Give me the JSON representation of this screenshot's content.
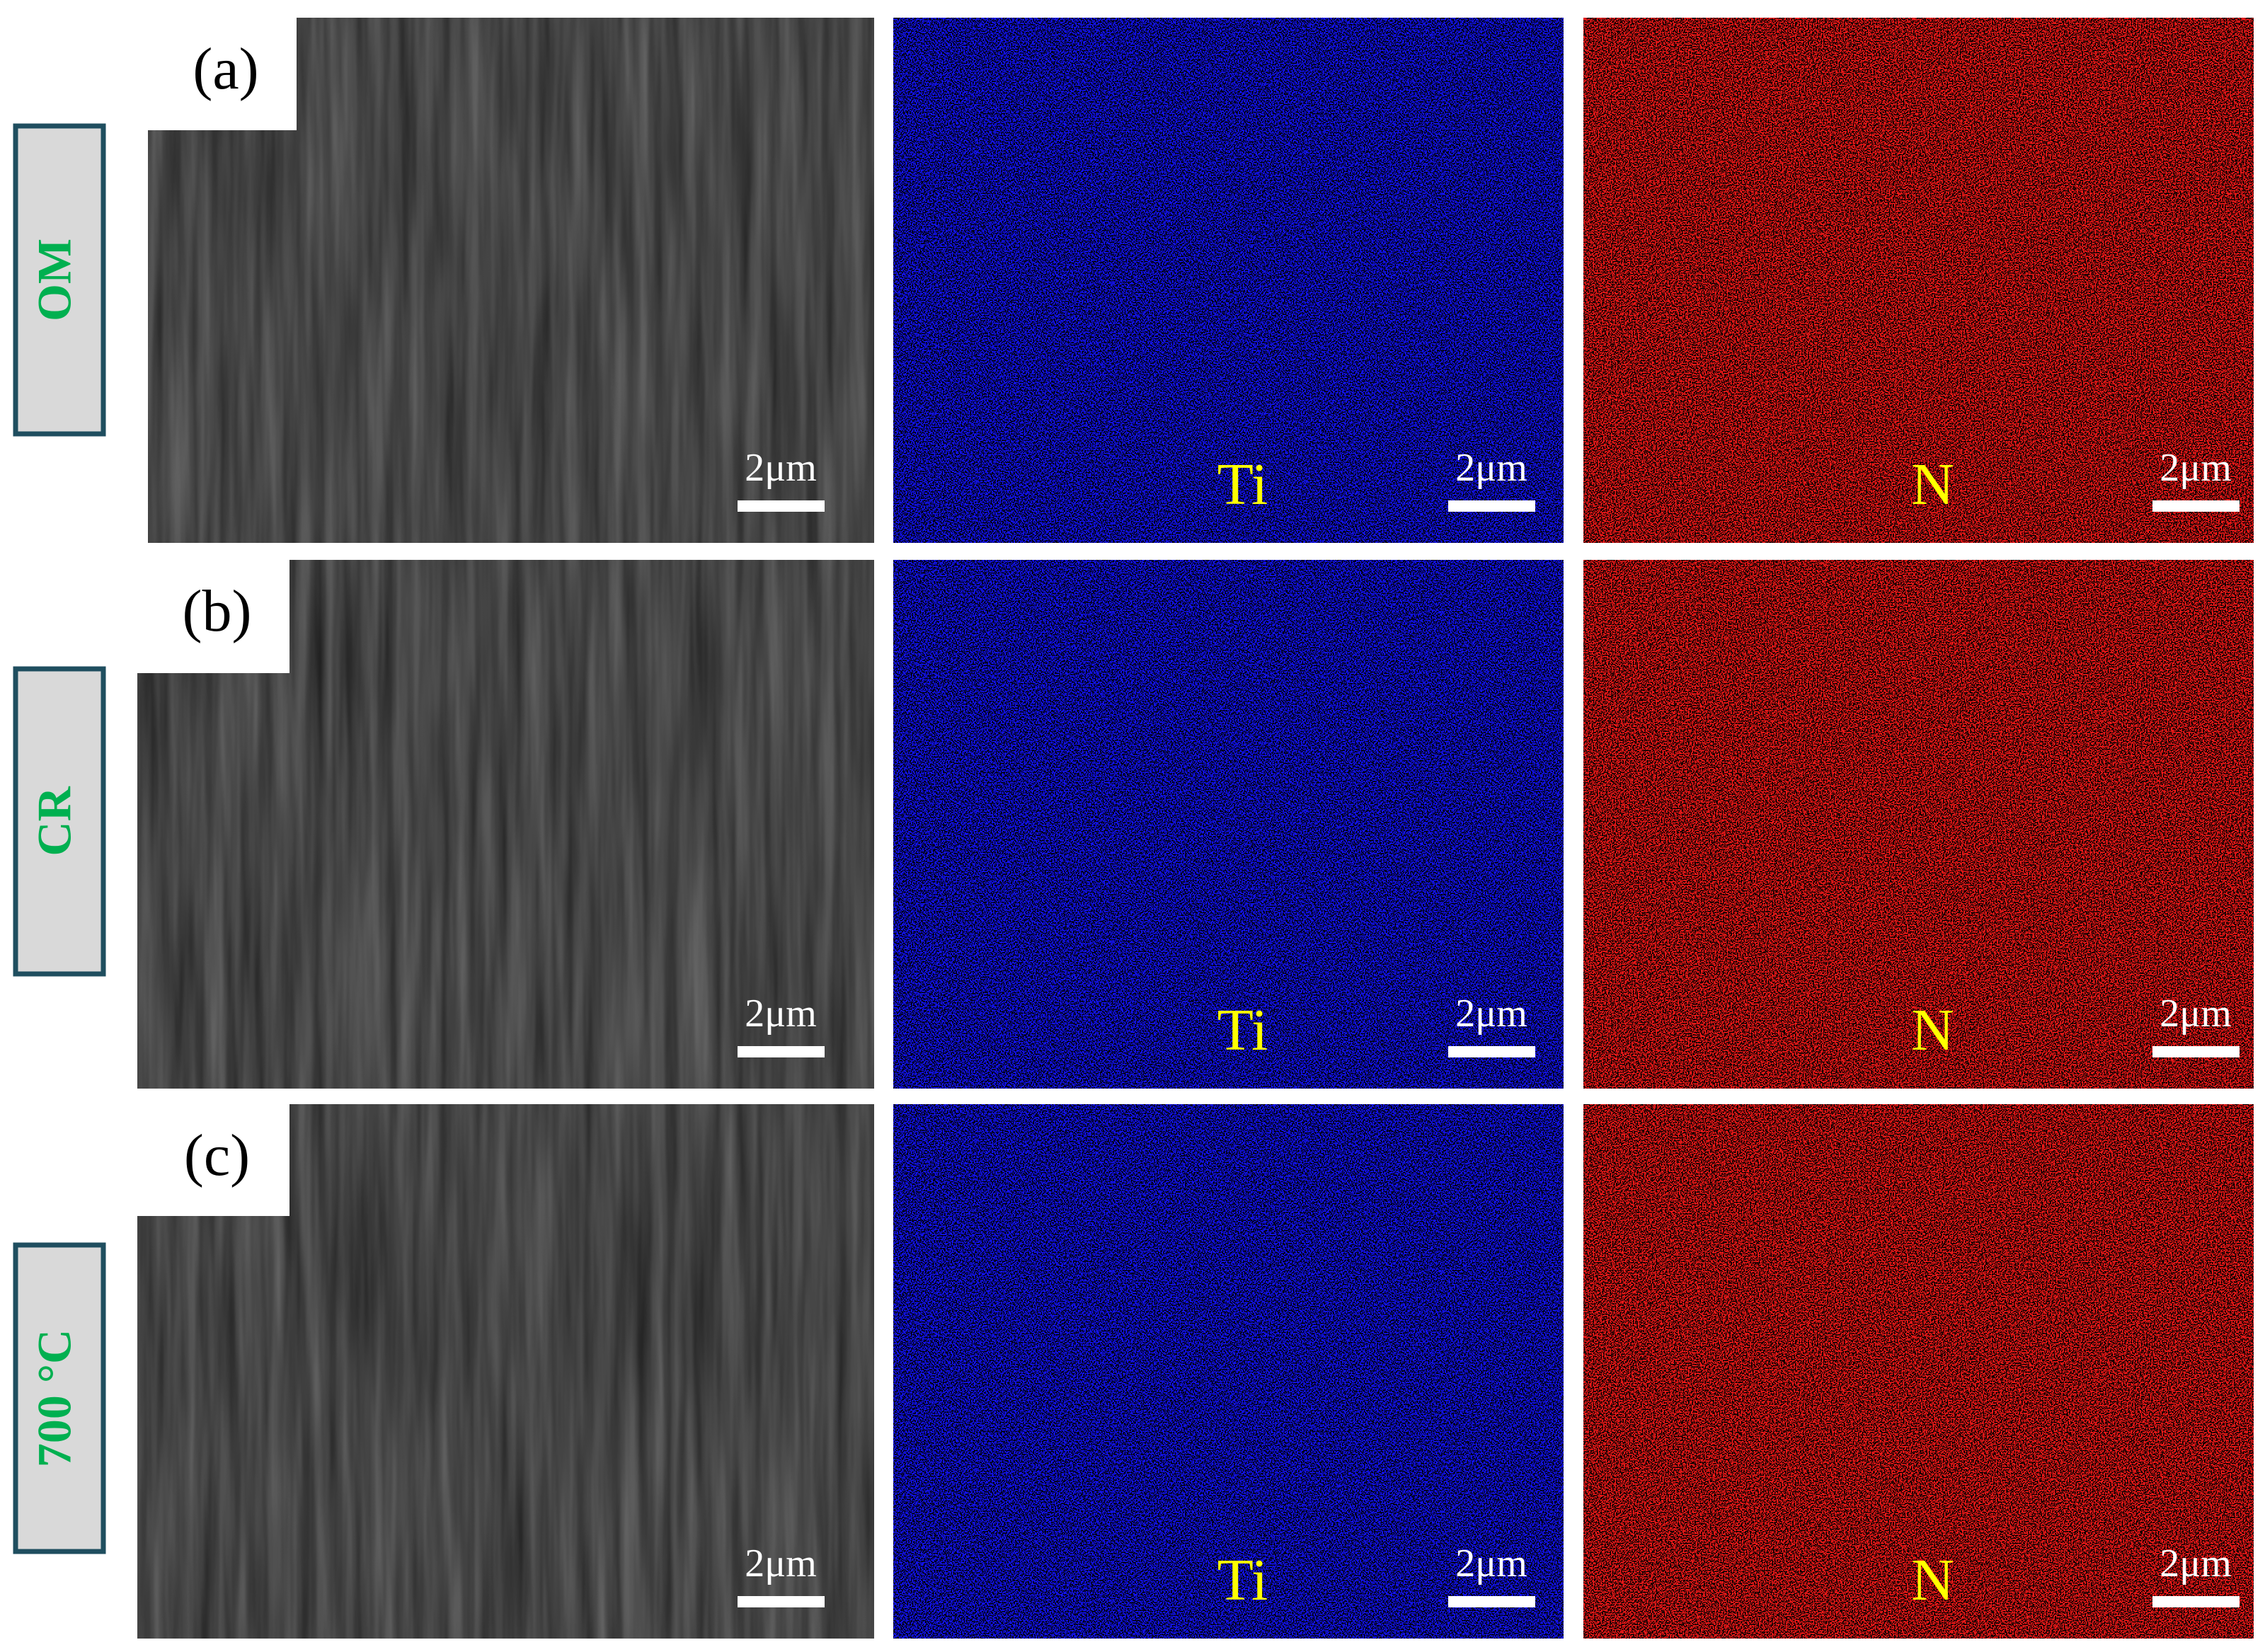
{
  "rows": [
    {
      "label": "OM",
      "panel": "(a)",
      "sem_scale": "2μm",
      "ti_label": "Ti",
      "ti_scale": "2μm",
      "n_label": "N",
      "n_scale": "2μm"
    },
    {
      "label": "CR",
      "panel": "(b)",
      "sem_scale": "2μm",
      "ti_label": "Ti",
      "ti_scale": "2μm",
      "n_label": "N",
      "n_scale": "2μm"
    },
    {
      "label": "700 °C",
      "panel": "(c)",
      "sem_scale": "2μm",
      "ti_label": "Ti",
      "ti_scale": "2μm",
      "n_label": "N",
      "n_scale": "2μm"
    }
  ]
}
